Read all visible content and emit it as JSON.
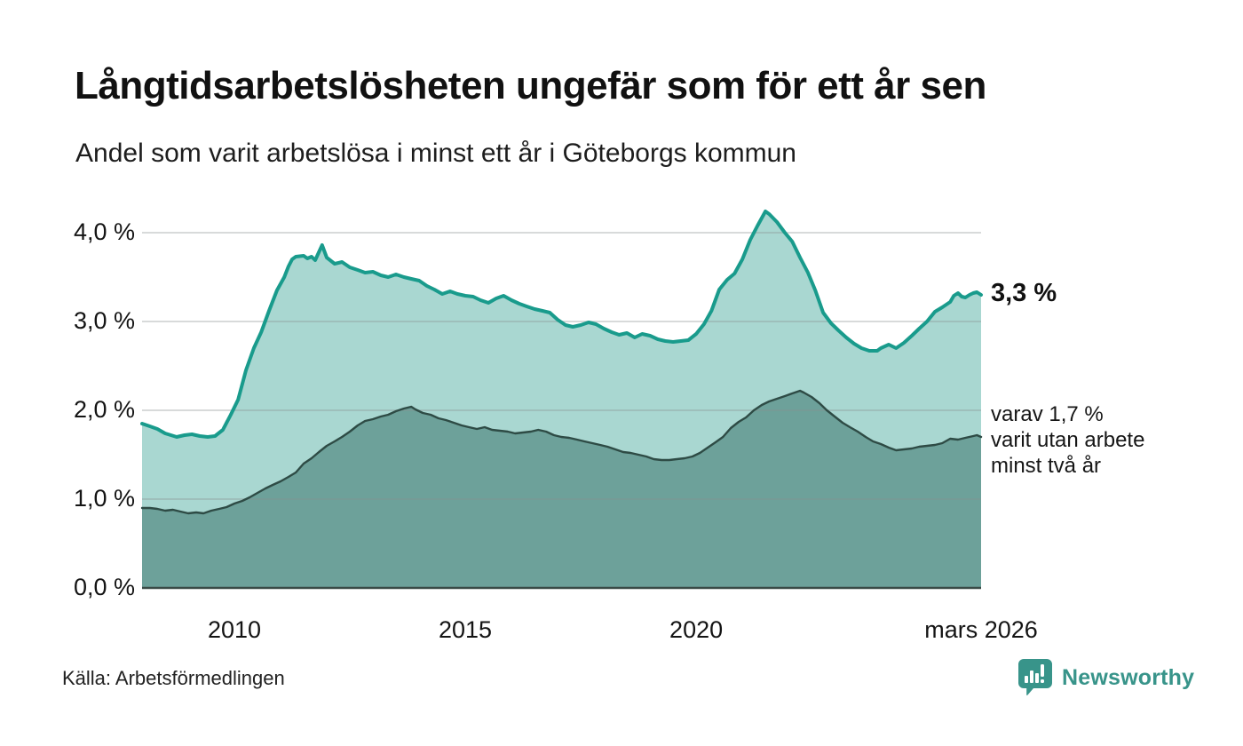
{
  "header": {
    "title": "Långtidsarbetslösheten ungefär som för ett år sen",
    "subtitle": "Andel som varit arbetslösa i minst ett år i Göteborgs kommun"
  },
  "footer": {
    "source": "Källa: Arbetsförmedlingen",
    "brand": "Newsworthy"
  },
  "colors": {
    "background": "#ffffff",
    "text": "#111111",
    "brand_teal": "#38948a",
    "gridline": "#8a9090",
    "axis_line": "#394a46"
  },
  "chart_data": {
    "type": "area",
    "title": "Långtidsarbetslösheten ungefär som för ett år sen",
    "subtitle": "Andel som varit arbetslösa i minst ett år i Göteborgs kommun",
    "x_range": [
      2008.0,
      2026.17
    ],
    "y_axis": {
      "range": [
        0,
        4.2
      ],
      "ticks": [
        {
          "value": 0,
          "label": "0,0 %"
        },
        {
          "value": 1,
          "label": "1,0 %"
        },
        {
          "value": 2,
          "label": "2,0 %"
        },
        {
          "value": 3,
          "label": "3,0 %"
        },
        {
          "value": 4,
          "label": "4,0 %"
        }
      ]
    },
    "x_axis": {
      "ticks": [
        {
          "year": 2010,
          "label": "2010"
        },
        {
          "year": 2015,
          "label": "2015"
        },
        {
          "year": 2020,
          "label": "2020"
        },
        {
          "year": 2026.17,
          "label": "mars 2026"
        }
      ]
    },
    "grid": true,
    "legend_position": "end-labels-right",
    "annotations": {
      "primary": {
        "text": "3,3 %"
      },
      "secondary": {
        "lines": [
          "varav 1,7 %",
          "varit utan arbete",
          "minst två år"
        ]
      }
    },
    "series": [
      {
        "name": "Arbetslösa minst ett år",
        "end_value_label": "3,3 %",
        "line_color": "#199b8c",
        "fill_color": "#a9d7d1",
        "line_width": 4,
        "points": [
          [
            2008.0,
            1.85
          ],
          [
            2008.17,
            1.82
          ],
          [
            2008.33,
            1.79
          ],
          [
            2008.5,
            1.74
          ],
          [
            2008.75,
            1.7
          ],
          [
            2008.92,
            1.72
          ],
          [
            2009.08,
            1.73
          ],
          [
            2009.25,
            1.71
          ],
          [
            2009.42,
            1.7
          ],
          [
            2009.58,
            1.71
          ],
          [
            2009.75,
            1.78
          ],
          [
            2009.92,
            1.95
          ],
          [
            2010.08,
            2.12
          ],
          [
            2010.25,
            2.45
          ],
          [
            2010.42,
            2.7
          ],
          [
            2010.58,
            2.88
          ],
          [
            2010.75,
            3.12
          ],
          [
            2010.92,
            3.35
          ],
          [
            2011.08,
            3.5
          ],
          [
            2011.17,
            3.62
          ],
          [
            2011.25,
            3.7
          ],
          [
            2011.33,
            3.73
          ],
          [
            2011.5,
            3.74
          ],
          [
            2011.58,
            3.71
          ],
          [
            2011.67,
            3.73
          ],
          [
            2011.75,
            3.69
          ],
          [
            2011.9,
            3.86
          ],
          [
            2012.0,
            3.72
          ],
          [
            2012.17,
            3.65
          ],
          [
            2012.33,
            3.67
          ],
          [
            2012.5,
            3.61
          ],
          [
            2012.67,
            3.58
          ],
          [
            2012.83,
            3.55
          ],
          [
            2013.0,
            3.56
          ],
          [
            2013.17,
            3.52
          ],
          [
            2013.33,
            3.5
          ],
          [
            2013.5,
            3.53
          ],
          [
            2013.67,
            3.5
          ],
          [
            2013.83,
            3.48
          ],
          [
            2014.0,
            3.46
          ],
          [
            2014.17,
            3.4
          ],
          [
            2014.33,
            3.36
          ],
          [
            2014.5,
            3.31
          ],
          [
            2014.67,
            3.34
          ],
          [
            2014.83,
            3.31
          ],
          [
            2015.0,
            3.29
          ],
          [
            2015.17,
            3.28
          ],
          [
            2015.33,
            3.24
          ],
          [
            2015.5,
            3.21
          ],
          [
            2015.67,
            3.26
          ],
          [
            2015.83,
            3.29
          ],
          [
            2016.0,
            3.24
          ],
          [
            2016.17,
            3.2
          ],
          [
            2016.33,
            3.17
          ],
          [
            2016.5,
            3.14
          ],
          [
            2016.67,
            3.12
          ],
          [
            2016.83,
            3.1
          ],
          [
            2017.0,
            3.02
          ],
          [
            2017.17,
            2.96
          ],
          [
            2017.33,
            2.94
          ],
          [
            2017.5,
            2.96
          ],
          [
            2017.67,
            2.99
          ],
          [
            2017.83,
            2.97
          ],
          [
            2018.0,
            2.92
          ],
          [
            2018.17,
            2.88
          ],
          [
            2018.33,
            2.85
          ],
          [
            2018.5,
            2.87
          ],
          [
            2018.67,
            2.82
          ],
          [
            2018.83,
            2.86
          ],
          [
            2019.0,
            2.84
          ],
          [
            2019.17,
            2.8
          ],
          [
            2019.33,
            2.78
          ],
          [
            2019.5,
            2.77
          ],
          [
            2019.67,
            2.78
          ],
          [
            2019.83,
            2.79
          ],
          [
            2020.0,
            2.86
          ],
          [
            2020.17,
            2.97
          ],
          [
            2020.33,
            3.12
          ],
          [
            2020.5,
            3.36
          ],
          [
            2020.67,
            3.47
          ],
          [
            2020.83,
            3.54
          ],
          [
            2021.0,
            3.7
          ],
          [
            2021.17,
            3.92
          ],
          [
            2021.33,
            4.08
          ],
          [
            2021.5,
            4.24
          ],
          [
            2021.58,
            4.21
          ],
          [
            2021.75,
            4.12
          ],
          [
            2021.92,
            4.0
          ],
          [
            2022.08,
            3.9
          ],
          [
            2022.25,
            3.72
          ],
          [
            2022.42,
            3.55
          ],
          [
            2022.58,
            3.35
          ],
          [
            2022.75,
            3.1
          ],
          [
            2022.92,
            2.98
          ],
          [
            2023.08,
            2.9
          ],
          [
            2023.25,
            2.82
          ],
          [
            2023.42,
            2.75
          ],
          [
            2023.58,
            2.7
          ],
          [
            2023.75,
            2.67
          ],
          [
            2023.92,
            2.67
          ],
          [
            2024.0,
            2.7
          ],
          [
            2024.17,
            2.74
          ],
          [
            2024.33,
            2.7
          ],
          [
            2024.5,
            2.76
          ],
          [
            2024.67,
            2.84
          ],
          [
            2024.83,
            2.92
          ],
          [
            2025.0,
            3.0
          ],
          [
            2025.17,
            3.11
          ],
          [
            2025.33,
            3.16
          ],
          [
            2025.5,
            3.22
          ],
          [
            2025.58,
            3.29
          ],
          [
            2025.67,
            3.32
          ],
          [
            2025.75,
            3.28
          ],
          [
            2025.83,
            3.27
          ],
          [
            2025.92,
            3.3
          ],
          [
            2026.0,
            3.32
          ],
          [
            2026.08,
            3.33
          ],
          [
            2026.17,
            3.3
          ]
        ]
      },
      {
        "name": "varav varit utan arbete minst två år",
        "end_value_label": "varav 1,7 %",
        "line_color": "#2e4b45",
        "fill_color": "#6da19a",
        "line_width": 2.4,
        "points": [
          [
            2008.0,
            0.9
          ],
          [
            2008.17,
            0.9
          ],
          [
            2008.33,
            0.89
          ],
          [
            2008.5,
            0.87
          ],
          [
            2008.67,
            0.88
          ],
          [
            2008.83,
            0.86
          ],
          [
            2009.0,
            0.84
          ],
          [
            2009.17,
            0.85
          ],
          [
            2009.33,
            0.84
          ],
          [
            2009.5,
            0.87
          ],
          [
            2009.67,
            0.89
          ],
          [
            2009.83,
            0.91
          ],
          [
            2010.0,
            0.95
          ],
          [
            2010.17,
            0.98
          ],
          [
            2010.33,
            1.02
          ],
          [
            2010.5,
            1.07
          ],
          [
            2010.67,
            1.12
          ],
          [
            2010.83,
            1.16
          ],
          [
            2011.0,
            1.2
          ],
          [
            2011.17,
            1.25
          ],
          [
            2011.33,
            1.3
          ],
          [
            2011.5,
            1.4
          ],
          [
            2011.67,
            1.46
          ],
          [
            2011.83,
            1.53
          ],
          [
            2012.0,
            1.6
          ],
          [
            2012.17,
            1.65
          ],
          [
            2012.33,
            1.7
          ],
          [
            2012.5,
            1.76
          ],
          [
            2012.67,
            1.83
          ],
          [
            2012.83,
            1.88
          ],
          [
            2013.0,
            1.9
          ],
          [
            2013.17,
            1.93
          ],
          [
            2013.33,
            1.95
          ],
          [
            2013.5,
            1.99
          ],
          [
            2013.67,
            2.02
          ],
          [
            2013.83,
            2.04
          ],
          [
            2013.92,
            2.01
          ],
          [
            2014.08,
            1.97
          ],
          [
            2014.25,
            1.95
          ],
          [
            2014.42,
            1.91
          ],
          [
            2014.58,
            1.89
          ],
          [
            2014.75,
            1.86
          ],
          [
            2014.92,
            1.83
          ],
          [
            2015.08,
            1.81
          ],
          [
            2015.25,
            1.79
          ],
          [
            2015.42,
            1.81
          ],
          [
            2015.58,
            1.78
          ],
          [
            2015.75,
            1.77
          ],
          [
            2015.92,
            1.76
          ],
          [
            2016.08,
            1.74
          ],
          [
            2016.25,
            1.75
          ],
          [
            2016.42,
            1.76
          ],
          [
            2016.58,
            1.78
          ],
          [
            2016.75,
            1.76
          ],
          [
            2016.92,
            1.72
          ],
          [
            2017.08,
            1.7
          ],
          [
            2017.25,
            1.69
          ],
          [
            2017.42,
            1.67
          ],
          [
            2017.58,
            1.65
          ],
          [
            2017.75,
            1.63
          ],
          [
            2017.92,
            1.61
          ],
          [
            2018.08,
            1.59
          ],
          [
            2018.25,
            1.56
          ],
          [
            2018.42,
            1.53
          ],
          [
            2018.58,
            1.52
          ],
          [
            2018.75,
            1.5
          ],
          [
            2018.92,
            1.48
          ],
          [
            2019.08,
            1.45
          ],
          [
            2019.25,
            1.44
          ],
          [
            2019.42,
            1.44
          ],
          [
            2019.58,
            1.45
          ],
          [
            2019.75,
            1.46
          ],
          [
            2019.92,
            1.48
          ],
          [
            2020.08,
            1.52
          ],
          [
            2020.25,
            1.58
          ],
          [
            2020.42,
            1.64
          ],
          [
            2020.58,
            1.7
          ],
          [
            2020.75,
            1.8
          ],
          [
            2020.92,
            1.87
          ],
          [
            2021.08,
            1.92
          ],
          [
            2021.25,
            2.0
          ],
          [
            2021.42,
            2.06
          ],
          [
            2021.58,
            2.1
          ],
          [
            2021.75,
            2.13
          ],
          [
            2021.92,
            2.16
          ],
          [
            2022.08,
            2.19
          ],
          [
            2022.25,
            2.22
          ],
          [
            2022.33,
            2.2
          ],
          [
            2022.5,
            2.15
          ],
          [
            2022.67,
            2.08
          ],
          [
            2022.83,
            2.0
          ],
          [
            2023.0,
            1.93
          ],
          [
            2023.17,
            1.86
          ],
          [
            2023.33,
            1.81
          ],
          [
            2023.5,
            1.76
          ],
          [
            2023.67,
            1.7
          ],
          [
            2023.83,
            1.65
          ],
          [
            2024.0,
            1.62
          ],
          [
            2024.17,
            1.58
          ],
          [
            2024.33,
            1.55
          ],
          [
            2024.5,
            1.56
          ],
          [
            2024.67,
            1.57
          ],
          [
            2024.83,
            1.59
          ],
          [
            2025.0,
            1.6
          ],
          [
            2025.17,
            1.61
          ],
          [
            2025.33,
            1.63
          ],
          [
            2025.5,
            1.68
          ],
          [
            2025.67,
            1.67
          ],
          [
            2025.83,
            1.69
          ],
          [
            2026.0,
            1.71
          ],
          [
            2026.08,
            1.72
          ],
          [
            2026.17,
            1.7
          ]
        ]
      }
    ]
  }
}
